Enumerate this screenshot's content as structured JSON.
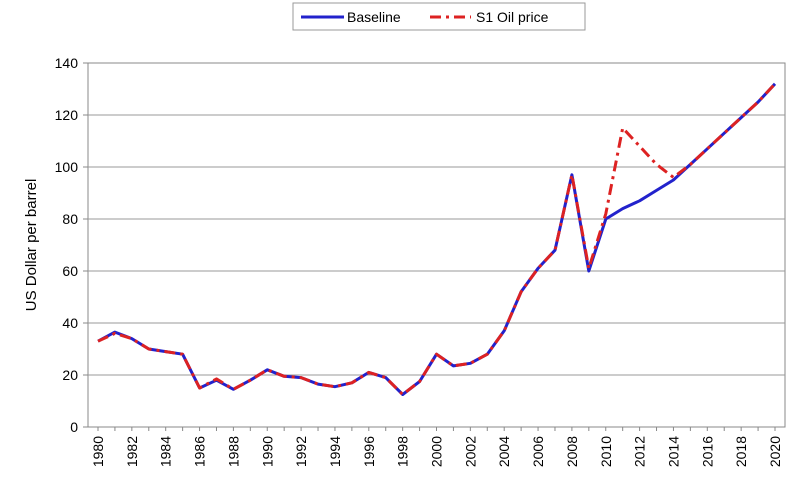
{
  "chart_data": {
    "type": "line",
    "xlabel": "",
    "ylabel": "US Dollar per barrel",
    "xlim": [
      1980,
      2020
    ],
    "ylim": [
      0,
      140
    ],
    "yticks": [
      0,
      20,
      40,
      60,
      80,
      100,
      120,
      140
    ],
    "xticks": [
      1980,
      1982,
      1984,
      1986,
      1988,
      1990,
      1992,
      1994,
      1996,
      1998,
      2000,
      2002,
      2004,
      2006,
      2008,
      2010,
      2012,
      2014,
      2016,
      2018,
      2020
    ],
    "grid": "horizontal",
    "legend_position": "top",
    "series": [
      {
        "name": "S1 Oil price",
        "color": "#dd2222",
        "style": "dash-dot",
        "x": [
          1980,
          1981,
          1982,
          1983,
          1984,
          1985,
          1986,
          1987,
          1988,
          1989,
          1990,
          1991,
          1992,
          1993,
          1994,
          1995,
          1996,
          1997,
          1998,
          1999,
          2000,
          2001,
          2002,
          2003,
          2004,
          2005,
          2006,
          2007,
          2008,
          2009,
          2010,
          2011,
          2012,
          2013,
          2014,
          2015,
          2016,
          2017,
          2018,
          2019,
          2020
        ],
        "values": [
          33,
          36,
          34,
          30,
          29,
          28,
          15,
          18.5,
          14.5,
          18,
          22,
          19.5,
          19,
          16.5,
          15.5,
          17,
          21,
          19,
          12.5,
          17.5,
          28,
          23.5,
          24.5,
          28,
          37,
          52,
          61,
          68,
          97,
          61,
          82,
          115,
          108,
          101,
          96,
          101,
          107,
          113,
          119,
          125,
          132
        ]
      },
      {
        "name": "Baseline",
        "color": "#2222cc",
        "style": "solid",
        "x": [
          1980,
          1981,
          1982,
          1983,
          1984,
          1985,
          1986,
          1987,
          1988,
          1989,
          1990,
          1991,
          1992,
          1993,
          1994,
          1995,
          1996,
          1997,
          1998,
          1999,
          2000,
          2001,
          2002,
          2003,
          2004,
          2005,
          2006,
          2007,
          2008,
          2009,
          2010,
          2011,
          2012,
          2013,
          2014,
          2015,
          2016,
          2017,
          2018,
          2019,
          2020
        ],
        "values": [
          33,
          36.5,
          34,
          30,
          29,
          28,
          15,
          18,
          14.5,
          18,
          22,
          19.5,
          19,
          16.5,
          15.5,
          17,
          21,
          19,
          12.5,
          17.5,
          28,
          23.5,
          24.5,
          28,
          37,
          52,
          61,
          68,
          97,
          60,
          80,
          84,
          87,
          91,
          95,
          101,
          107,
          113,
          119,
          125,
          132
        ]
      }
    ]
  }
}
